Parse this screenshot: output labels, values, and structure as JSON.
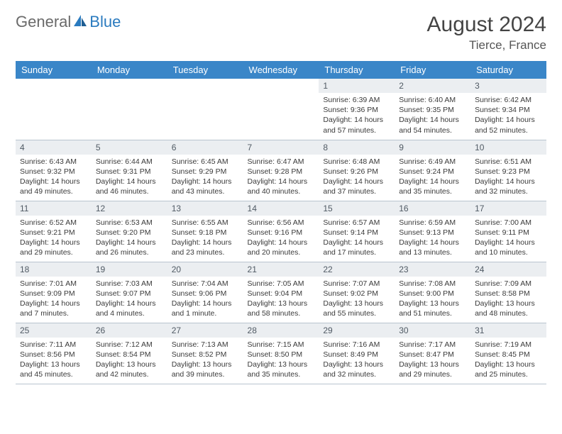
{
  "logo": {
    "word1": "General",
    "word2": "Blue"
  },
  "header": {
    "title": "August 2024",
    "location": "Tierce, France"
  },
  "colors": {
    "header_bg": "#3a86c8",
    "header_text": "#ffffff",
    "daynum_bg": "#ebeef1",
    "daynum_text": "#505a64",
    "cell_border": "#b9c4cf",
    "body_text": "#3a3a3a",
    "logo_gray": "#6a6a6a",
    "logo_blue": "#2b7bbf"
  },
  "weekdays": [
    "Sunday",
    "Monday",
    "Tuesday",
    "Wednesday",
    "Thursday",
    "Friday",
    "Saturday"
  ],
  "weeks": [
    [
      null,
      null,
      null,
      null,
      {
        "n": "1",
        "sr": "Sunrise: 6:39 AM",
        "ss": "Sunset: 9:36 PM",
        "dl": "Daylight: 14 hours and 57 minutes."
      },
      {
        "n": "2",
        "sr": "Sunrise: 6:40 AM",
        "ss": "Sunset: 9:35 PM",
        "dl": "Daylight: 14 hours and 54 minutes."
      },
      {
        "n": "3",
        "sr": "Sunrise: 6:42 AM",
        "ss": "Sunset: 9:34 PM",
        "dl": "Daylight: 14 hours and 52 minutes."
      }
    ],
    [
      {
        "n": "4",
        "sr": "Sunrise: 6:43 AM",
        "ss": "Sunset: 9:32 PM",
        "dl": "Daylight: 14 hours and 49 minutes."
      },
      {
        "n": "5",
        "sr": "Sunrise: 6:44 AM",
        "ss": "Sunset: 9:31 PM",
        "dl": "Daylight: 14 hours and 46 minutes."
      },
      {
        "n": "6",
        "sr": "Sunrise: 6:45 AM",
        "ss": "Sunset: 9:29 PM",
        "dl": "Daylight: 14 hours and 43 minutes."
      },
      {
        "n": "7",
        "sr": "Sunrise: 6:47 AM",
        "ss": "Sunset: 9:28 PM",
        "dl": "Daylight: 14 hours and 40 minutes."
      },
      {
        "n": "8",
        "sr": "Sunrise: 6:48 AM",
        "ss": "Sunset: 9:26 PM",
        "dl": "Daylight: 14 hours and 37 minutes."
      },
      {
        "n": "9",
        "sr": "Sunrise: 6:49 AM",
        "ss": "Sunset: 9:24 PM",
        "dl": "Daylight: 14 hours and 35 minutes."
      },
      {
        "n": "10",
        "sr": "Sunrise: 6:51 AM",
        "ss": "Sunset: 9:23 PM",
        "dl": "Daylight: 14 hours and 32 minutes."
      }
    ],
    [
      {
        "n": "11",
        "sr": "Sunrise: 6:52 AM",
        "ss": "Sunset: 9:21 PM",
        "dl": "Daylight: 14 hours and 29 minutes."
      },
      {
        "n": "12",
        "sr": "Sunrise: 6:53 AM",
        "ss": "Sunset: 9:20 PM",
        "dl": "Daylight: 14 hours and 26 minutes."
      },
      {
        "n": "13",
        "sr": "Sunrise: 6:55 AM",
        "ss": "Sunset: 9:18 PM",
        "dl": "Daylight: 14 hours and 23 minutes."
      },
      {
        "n": "14",
        "sr": "Sunrise: 6:56 AM",
        "ss": "Sunset: 9:16 PM",
        "dl": "Daylight: 14 hours and 20 minutes."
      },
      {
        "n": "15",
        "sr": "Sunrise: 6:57 AM",
        "ss": "Sunset: 9:14 PM",
        "dl": "Daylight: 14 hours and 17 minutes."
      },
      {
        "n": "16",
        "sr": "Sunrise: 6:59 AM",
        "ss": "Sunset: 9:13 PM",
        "dl": "Daylight: 14 hours and 13 minutes."
      },
      {
        "n": "17",
        "sr": "Sunrise: 7:00 AM",
        "ss": "Sunset: 9:11 PM",
        "dl": "Daylight: 14 hours and 10 minutes."
      }
    ],
    [
      {
        "n": "18",
        "sr": "Sunrise: 7:01 AM",
        "ss": "Sunset: 9:09 PM",
        "dl": "Daylight: 14 hours and 7 minutes."
      },
      {
        "n": "19",
        "sr": "Sunrise: 7:03 AM",
        "ss": "Sunset: 9:07 PM",
        "dl": "Daylight: 14 hours and 4 minutes."
      },
      {
        "n": "20",
        "sr": "Sunrise: 7:04 AM",
        "ss": "Sunset: 9:06 PM",
        "dl": "Daylight: 14 hours and 1 minute."
      },
      {
        "n": "21",
        "sr": "Sunrise: 7:05 AM",
        "ss": "Sunset: 9:04 PM",
        "dl": "Daylight: 13 hours and 58 minutes."
      },
      {
        "n": "22",
        "sr": "Sunrise: 7:07 AM",
        "ss": "Sunset: 9:02 PM",
        "dl": "Daylight: 13 hours and 55 minutes."
      },
      {
        "n": "23",
        "sr": "Sunrise: 7:08 AM",
        "ss": "Sunset: 9:00 PM",
        "dl": "Daylight: 13 hours and 51 minutes."
      },
      {
        "n": "24",
        "sr": "Sunrise: 7:09 AM",
        "ss": "Sunset: 8:58 PM",
        "dl": "Daylight: 13 hours and 48 minutes."
      }
    ],
    [
      {
        "n": "25",
        "sr": "Sunrise: 7:11 AM",
        "ss": "Sunset: 8:56 PM",
        "dl": "Daylight: 13 hours and 45 minutes."
      },
      {
        "n": "26",
        "sr": "Sunrise: 7:12 AM",
        "ss": "Sunset: 8:54 PM",
        "dl": "Daylight: 13 hours and 42 minutes."
      },
      {
        "n": "27",
        "sr": "Sunrise: 7:13 AM",
        "ss": "Sunset: 8:52 PM",
        "dl": "Daylight: 13 hours and 39 minutes."
      },
      {
        "n": "28",
        "sr": "Sunrise: 7:15 AM",
        "ss": "Sunset: 8:50 PM",
        "dl": "Daylight: 13 hours and 35 minutes."
      },
      {
        "n": "29",
        "sr": "Sunrise: 7:16 AM",
        "ss": "Sunset: 8:49 PM",
        "dl": "Daylight: 13 hours and 32 minutes."
      },
      {
        "n": "30",
        "sr": "Sunrise: 7:17 AM",
        "ss": "Sunset: 8:47 PM",
        "dl": "Daylight: 13 hours and 29 minutes."
      },
      {
        "n": "31",
        "sr": "Sunrise: 7:19 AM",
        "ss": "Sunset: 8:45 PM",
        "dl": "Daylight: 13 hours and 25 minutes."
      }
    ]
  ]
}
